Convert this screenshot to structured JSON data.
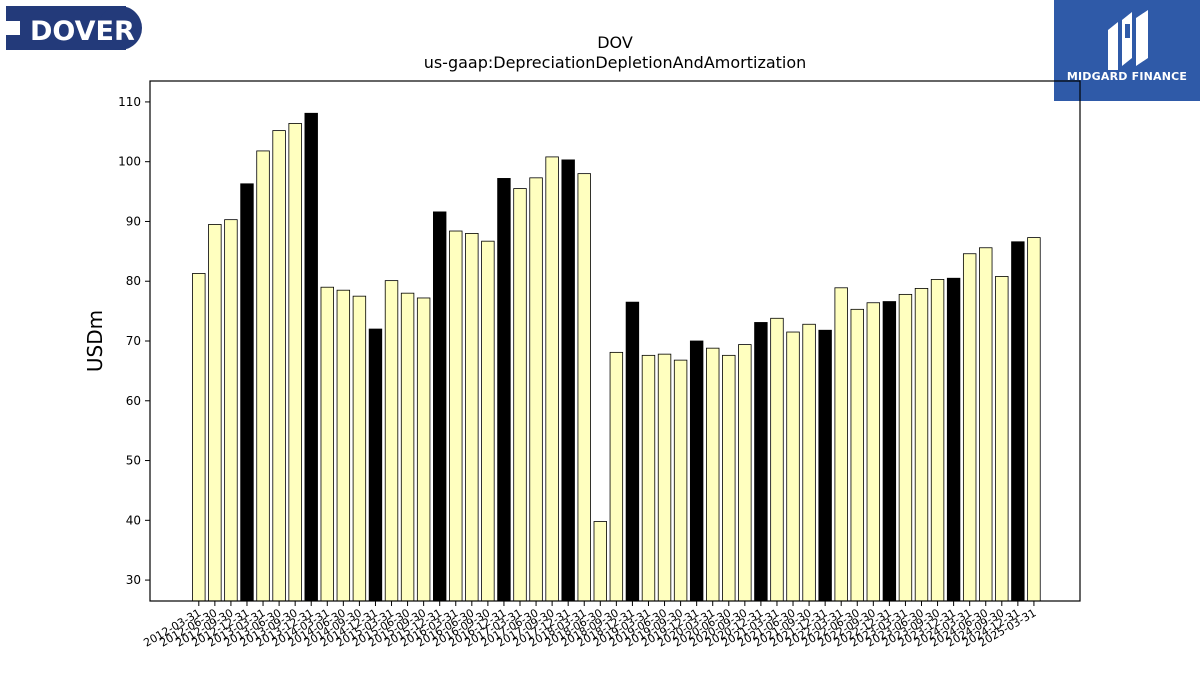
{
  "logos": {
    "dover": {
      "text": "DOVER",
      "color": "#233a7a"
    },
    "midgard": {
      "text": "MIDGARD FINANCE",
      "color": "#2f5aa8"
    }
  },
  "chart_data": {
    "type": "bar",
    "title": "DOV",
    "subtitle": "us-gaap:DepreciationDepletionAndAmortization",
    "xlabel": "",
    "ylabel": "USDm",
    "ylim": [
      26.5,
      113.5
    ],
    "yticks": [
      30,
      40,
      50,
      60,
      70,
      80,
      90,
      100,
      110
    ],
    "grid": false,
    "colors": {
      "quarter": "#ffffbf",
      "q4": "#000000",
      "edge": "#000000"
    },
    "categories": [
      "2012-03-31",
      "2012-06-30",
      "2012-09-30",
      "2012-12-31",
      "2013-03-31",
      "2013-06-30",
      "2013-09-30",
      "2013-12-31",
      "2014-03-31",
      "2014-06-30",
      "2014-09-30",
      "2014-12-31",
      "2015-03-31",
      "2015-06-30",
      "2015-09-30",
      "2015-12-31",
      "2016-03-31",
      "2016-06-30",
      "2016-09-30",
      "2016-12-31",
      "2017-03-31",
      "2017-06-30",
      "2017-09-30",
      "2017-12-31",
      "2018-03-31",
      "2018-06-30",
      "2018-09-30",
      "2018-12-31",
      "2019-03-31",
      "2019-06-30",
      "2019-09-30",
      "2019-12-31",
      "2020-03-31",
      "2020-06-30",
      "2020-09-30",
      "2020-12-31",
      "2021-03-31",
      "2021-06-30",
      "2021-09-30",
      "2021-12-31",
      "2022-03-31",
      "2022-06-30",
      "2022-09-30",
      "2022-12-31",
      "2023-03-31",
      "2023-06-30",
      "2023-09-30",
      "2023-12-31",
      "2024-03-31",
      "2024-06-30",
      "2024-09-30",
      "2024-12-31",
      "2025-03-31"
    ],
    "values": [
      81.3,
      89.5,
      90.3,
      96.3,
      101.8,
      105.2,
      106.4,
      108.1,
      79.0,
      78.5,
      77.5,
      72.0,
      80.1,
      78.0,
      77.2,
      91.6,
      88.4,
      88.0,
      86.7,
      97.2,
      95.5,
      97.3,
      100.8,
      100.3,
      98.0,
      39.8,
      68.1,
      76.5,
      67.6,
      67.8,
      66.8,
      70.0,
      68.8,
      67.6,
      69.4,
      73.1,
      73.8,
      71.5,
      72.8,
      71.8,
      78.9,
      75.3,
      76.4,
      76.6,
      77.8,
      78.8,
      80.3,
      80.5,
      84.6,
      85.6,
      80.8,
      86.6,
      87.3
    ]
  }
}
